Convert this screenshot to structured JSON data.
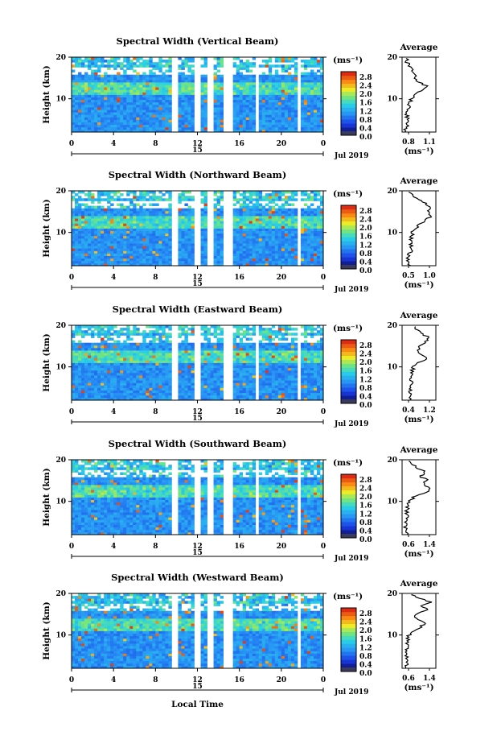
{
  "figure": {
    "x_label": "Local Time",
    "date_label": "Jul 2019",
    "day_label": "15",
    "x_ticks": [
      "0",
      "4",
      "8",
      "12",
      "16",
      "20",
      "0"
    ],
    "y_label": "Height (km)",
    "y_ticks": [
      "20",
      "10"
    ],
    "colorbar_unit": "(ms⁻¹)",
    "colorbar_ticks": [
      "2.8",
      "2.4",
      "2.0",
      "1.6",
      "1.2",
      "0.8",
      "0.4",
      "0.0"
    ],
    "avg_title": "Average",
    "avg_unit": "(ms⁻¹)"
  },
  "chart_data": [
    {
      "type": "heatmap",
      "title": "Spectral Width (Vertical Beam)",
      "xlabel": "Local Time",
      "ylabel": "Height (km)",
      "xlim": [
        0,
        24
      ],
      "ylim": [
        2,
        20
      ],
      "zlim": [
        0.0,
        2.8
      ],
      "data_gaps_hours": [
        [
          9.6,
          10.1
        ],
        [
          11.8,
          12.3
        ],
        [
          12.9,
          13.5
        ],
        [
          14.6,
          15.3
        ],
        [
          17.5,
          17.8
        ],
        [
          21.5,
          21.8
        ]
      ],
      "average_profile": {
        "title": "Average",
        "xlim": [
          0.8,
          1.1
        ],
        "xticks": [
          "0.8",
          "1.1"
        ],
        "height": [
          2,
          4,
          6,
          8,
          10,
          11,
          12,
          13,
          14,
          15,
          16,
          17,
          18,
          19,
          20
        ],
        "value": [
          0.82,
          0.85,
          0.84,
          0.86,
          0.88,
          0.92,
          0.97,
          1.02,
          0.95,
          0.92,
          0.9,
          0.88,
          0.86,
          0.84,
          0.85
        ]
      }
    },
    {
      "type": "heatmap",
      "title": "Spectral Width (Northward Beam)",
      "xlabel": "Local Time",
      "ylabel": "Height (km)",
      "xlim": [
        0,
        24
      ],
      "ylim": [
        2,
        20
      ],
      "zlim": [
        0.0,
        2.8
      ],
      "data_gaps_hours": [
        [
          5.7,
          5.9
        ],
        [
          9.6,
          10.1
        ],
        [
          11.8,
          12.3
        ],
        [
          12.9,
          13.5
        ],
        [
          14.6,
          15.3
        ],
        [
          21.5,
          21.8
        ]
      ],
      "average_profile": {
        "title": "Average",
        "xlim": [
          0.4,
          1.1
        ],
        "xticks": [
          "0.5",
          "1.0"
        ],
        "height": [
          2,
          4,
          6,
          8,
          10,
          11,
          12,
          13,
          14,
          15,
          16,
          17,
          18,
          19,
          20
        ],
        "value": [
          0.55,
          0.52,
          0.6,
          0.58,
          0.62,
          0.68,
          0.78,
          0.9,
          1.0,
          0.92,
          0.98,
          0.9,
          0.7,
          0.6,
          0.55
        ]
      }
    },
    {
      "type": "heatmap",
      "title": "Spectral Width (Eastward Beam)",
      "xlabel": "Local Time",
      "ylabel": "Height (km)",
      "xlim": [
        0,
        24
      ],
      "ylim": [
        2,
        20
      ],
      "zlim": [
        0.0,
        2.8
      ],
      "data_gaps_hours": [
        [
          5.7,
          5.9
        ],
        [
          9.6,
          10.1
        ],
        [
          11.8,
          12.3
        ],
        [
          14.6,
          15.3
        ],
        [
          17.5,
          17.8
        ],
        [
          21.5,
          21.8
        ]
      ],
      "average_profile": {
        "title": "Average",
        "xlim": [
          0.3,
          1.5
        ],
        "xticks": [
          "0.4",
          "1.2"
        ],
        "height": [
          2,
          4,
          6,
          8,
          10,
          11,
          12,
          13,
          14,
          15,
          16,
          17,
          18,
          19,
          20
        ],
        "value": [
          0.6,
          0.58,
          0.65,
          0.62,
          0.7,
          0.85,
          1.2,
          1.0,
          0.85,
          0.95,
          1.1,
          1.25,
          1.0,
          0.8,
          0.7
        ]
      }
    },
    {
      "type": "heatmap",
      "title": "Spectral Width (Southward Beam)",
      "xlabel": "Local Time",
      "ylabel": "Height (km)",
      "xlim": [
        0,
        24
      ],
      "ylim": [
        2,
        20
      ],
      "zlim": [
        0.0,
        2.8
      ],
      "data_gaps_hours": [
        [
          5.7,
          5.9
        ],
        [
          9.6,
          10.1
        ],
        [
          11.8,
          12.3
        ],
        [
          12.9,
          13.5
        ],
        [
          14.6,
          15.3
        ],
        [
          17.5,
          17.8
        ],
        [
          21.5,
          21.8
        ]
      ],
      "average_profile": {
        "title": "Average",
        "xlim": [
          0.5,
          1.5
        ],
        "xticks": [
          "0.6",
          "1.4"
        ],
        "height": [
          2,
          4,
          6,
          8,
          10,
          11,
          12,
          13,
          14,
          15,
          16,
          17,
          18,
          19,
          20
        ],
        "value": [
          0.62,
          0.6,
          0.66,
          0.64,
          0.72,
          0.85,
          1.15,
          1.35,
          1.1,
          1.25,
          1.05,
          1.2,
          0.95,
          0.8,
          0.7
        ]
      }
    },
    {
      "type": "heatmap",
      "title": "Spectral Width (Westward Beam)",
      "xlabel": "Local Time",
      "ylabel": "Height (km)",
      "xlim": [
        0,
        24
      ],
      "ylim": [
        2,
        20
      ],
      "zlim": [
        0.0,
        2.8
      ],
      "data_gaps_hours": [
        [
          5.7,
          5.9
        ],
        [
          9.6,
          10.1
        ],
        [
          11.8,
          12.3
        ],
        [
          12.9,
          13.5
        ],
        [
          14.6,
          15.3
        ],
        [
          21.5,
          21.8
        ]
      ],
      "average_profile": {
        "title": "Average",
        "xlim": [
          0.5,
          1.5
        ],
        "xticks": [
          "0.6",
          "1.4"
        ],
        "height": [
          2,
          4,
          6,
          8,
          10,
          11,
          12,
          13,
          14,
          15,
          16,
          17,
          18,
          19,
          20
        ],
        "value": [
          0.64,
          0.62,
          0.66,
          0.65,
          0.7,
          0.82,
          1.05,
          1.2,
          0.95,
          0.85,
          1.3,
          1.1,
          1.35,
          0.9,
          0.75
        ]
      }
    }
  ]
}
